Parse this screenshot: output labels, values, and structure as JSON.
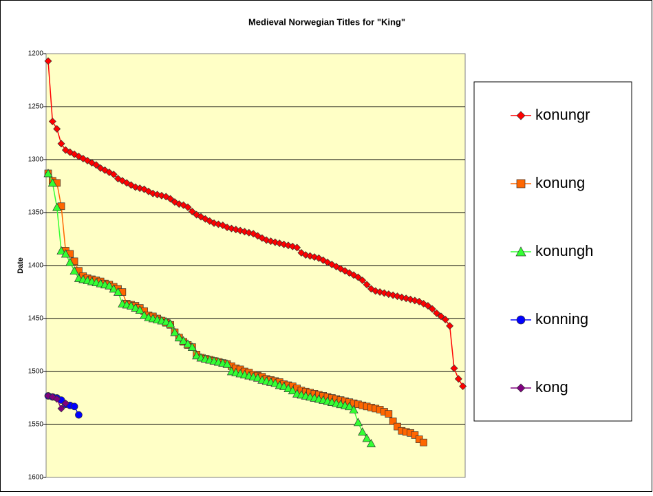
{
  "chart_data": {
    "type": "line",
    "title": "Medieval Norwegian Titles for \"King\"",
    "y_label": "Date",
    "ylim": [
      1200,
      1600
    ],
    "y_reversed": true,
    "yticks": [
      1200,
      1250,
      1300,
      1350,
      1400,
      1450,
      1500,
      1550,
      1600
    ],
    "grid": true,
    "legend": "right",
    "series": [
      {
        "name": "konungr",
        "color": "#ff0000",
        "marker": "diamond",
        "values": [
          1207,
          1264,
          1271,
          1285,
          1291,
          1293,
          1295,
          1297,
          1299,
          1301,
          1303,
          1305,
          1308,
          1310,
          1312,
          1314,
          1318,
          1320,
          1322,
          1324,
          1326,
          1327,
          1328,
          1330,
          1332,
          1333,
          1334,
          1335,
          1337,
          1340,
          1342,
          1343,
          1345,
          1349,
          1352,
          1354,
          1356,
          1358,
          1360,
          1361,
          1362,
          1364,
          1365,
          1366,
          1367,
          1368,
          1369,
          1370,
          1372,
          1374,
          1376,
          1377,
          1378,
          1379,
          1380,
          1381,
          1382,
          1383,
          1388,
          1390,
          1391,
          1392,
          1393,
          1395,
          1397,
          1399,
          1401,
          1403,
          1405,
          1407,
          1409,
          1411,
          1414,
          1418,
          1422,
          1424,
          1425,
          1426,
          1427,
          1428,
          1429,
          1430,
          1431,
          1432,
          1433,
          1434,
          1436,
          1438,
          1441,
          1445,
          1448,
          1451,
          1457,
          1497,
          1507,
          1514
        ]
      },
      {
        "name": "konung",
        "color": "#ff6600",
        "marker": "square",
        "values": [
          1313,
          1320,
          1322,
          1344,
          1386,
          1389,
          1396,
          1405,
          1410,
          1412,
          1413,
          1414,
          1415,
          1417,
          1418,
          1420,
          1422,
          1425,
          1436,
          1437,
          1438,
          1440,
          1443,
          1447,
          1448,
          1450,
          1452,
          1454,
          1456,
          1463,
          1468,
          1472,
          1475,
          1477,
          1484,
          1487,
          1488,
          1489,
          1490,
          1491,
          1492,
          1493,
          1495,
          1497,
          1498,
          1500,
          1501,
          1503,
          1504,
          1505,
          1507,
          1508,
          1509,
          1510,
          1512,
          1513,
          1514,
          1516,
          1518,
          1519,
          1520,
          1521,
          1522,
          1523,
          1524,
          1525,
          1526,
          1527,
          1528,
          1529,
          1530,
          1531,
          1532,
          1533,
          1534,
          1535,
          1536,
          1538,
          1540,
          1547,
          1552,
          1556,
          1557,
          1558,
          1560,
          1564,
          1567
        ]
      },
      {
        "name": "konungh",
        "color": "#33ff33",
        "marker": "triangle",
        "values": [
          1313,
          1322,
          1345,
          1386,
          1389,
          1397,
          1405,
          1412,
          1413,
          1414,
          1415,
          1416,
          1417,
          1418,
          1419,
          1422,
          1425,
          1436,
          1437,
          1438,
          1440,
          1442,
          1447,
          1449,
          1450,
          1451,
          1452,
          1453,
          1455,
          1463,
          1468,
          1471,
          1474,
          1477,
          1485,
          1487,
          1488,
          1489,
          1490,
          1491,
          1492,
          1493,
          1500,
          1501,
          1502,
          1503,
          1504,
          1505,
          1506,
          1508,
          1509,
          1510,
          1511,
          1513,
          1514,
          1516,
          1518,
          1521,
          1522,
          1523,
          1524,
          1525,
          1526,
          1527,
          1528,
          1529,
          1530,
          1531,
          1532,
          1533,
          1536,
          1548,
          1557,
          1563,
          1568
        ]
      },
      {
        "name": "konning",
        "color": "#0000ff",
        "marker": "circle",
        "values": [
          1523,
          1524,
          1525,
          1527,
          1531,
          1532,
          1533,
          1541
        ]
      },
      {
        "name": "kong",
        "color": "#800080",
        "marker": "diamond",
        "values": [
          1523,
          1524,
          1526,
          1535,
          1530
        ]
      }
    ]
  }
}
